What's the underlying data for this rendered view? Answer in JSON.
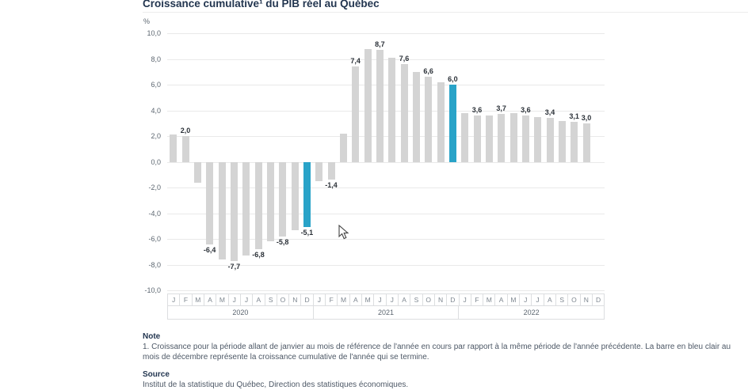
{
  "title": "Croissance cumulative¹ du PIB réel au Québec",
  "chart_data": {
    "type": "bar",
    "title": "Croissance cumulative¹ du PIB réel au Québec",
    "unit_label": "%",
    "ylim": [
      -10,
      10
    ],
    "ytick_step": 2,
    "ytick_labels": [
      "10,0",
      "8,0",
      "6,0",
      "4,0",
      "2,0",
      "0,0",
      "-2,0",
      "-4,0",
      "-6,0",
      "-8,0",
      "-10,0"
    ],
    "grid": true,
    "legend": "none",
    "month_letters": [
      "J",
      "F",
      "M",
      "A",
      "M",
      "J",
      "J",
      "A",
      "S",
      "O",
      "N",
      "D"
    ],
    "bar_color": "#d4d4d4",
    "highlight_color": "#29a3c8",
    "years": [
      {
        "label": "2020",
        "values": [
          2.1,
          2.0,
          -1.6,
          -6.4,
          -7.6,
          -7.7,
          -7.3,
          -6.8,
          -6.2,
          -5.8,
          -5.3,
          -5.1
        ],
        "point_labels": [
          null,
          "2,0",
          null,
          "-6,4",
          null,
          "-7,7",
          null,
          "-6,8",
          null,
          "-5,8",
          null,
          "-5,1"
        ],
        "highlight_month_index": 11
      },
      {
        "label": "2021",
        "values": [
          -1.5,
          -1.4,
          2.2,
          7.4,
          8.8,
          8.7,
          8.1,
          7.6,
          7.0,
          6.6,
          6.2,
          6.0
        ],
        "point_labels": [
          null,
          "-1,4",
          null,
          "7,4",
          null,
          "8,7",
          null,
          "7,6",
          null,
          "6,6",
          null,
          "6,0"
        ],
        "highlight_month_index": 11
      },
      {
        "label": "2022",
        "values": [
          3.8,
          3.6,
          3.6,
          3.7,
          3.8,
          3.6,
          3.5,
          3.4,
          3.2,
          3.1,
          3.0,
          null
        ],
        "point_labels": [
          null,
          "3,6",
          null,
          "3,7",
          null,
          "3,6",
          null,
          "3,4",
          null,
          "3,1",
          "3,0",
          null
        ],
        "highlight_month_index": null
      }
    ]
  },
  "note": {
    "heading": "Note",
    "text": "1. Croissance pour la période allant de janvier au mois de référence de l'année en cours par rapport à la même période de l'année précédente. La barre en bleu clair au mois de décembre représente la croissance cumulative de l'année qui se termine."
  },
  "source": {
    "heading": "Source",
    "text": "Institut de la statistique du Québec, Direction des statistiques économiques."
  }
}
